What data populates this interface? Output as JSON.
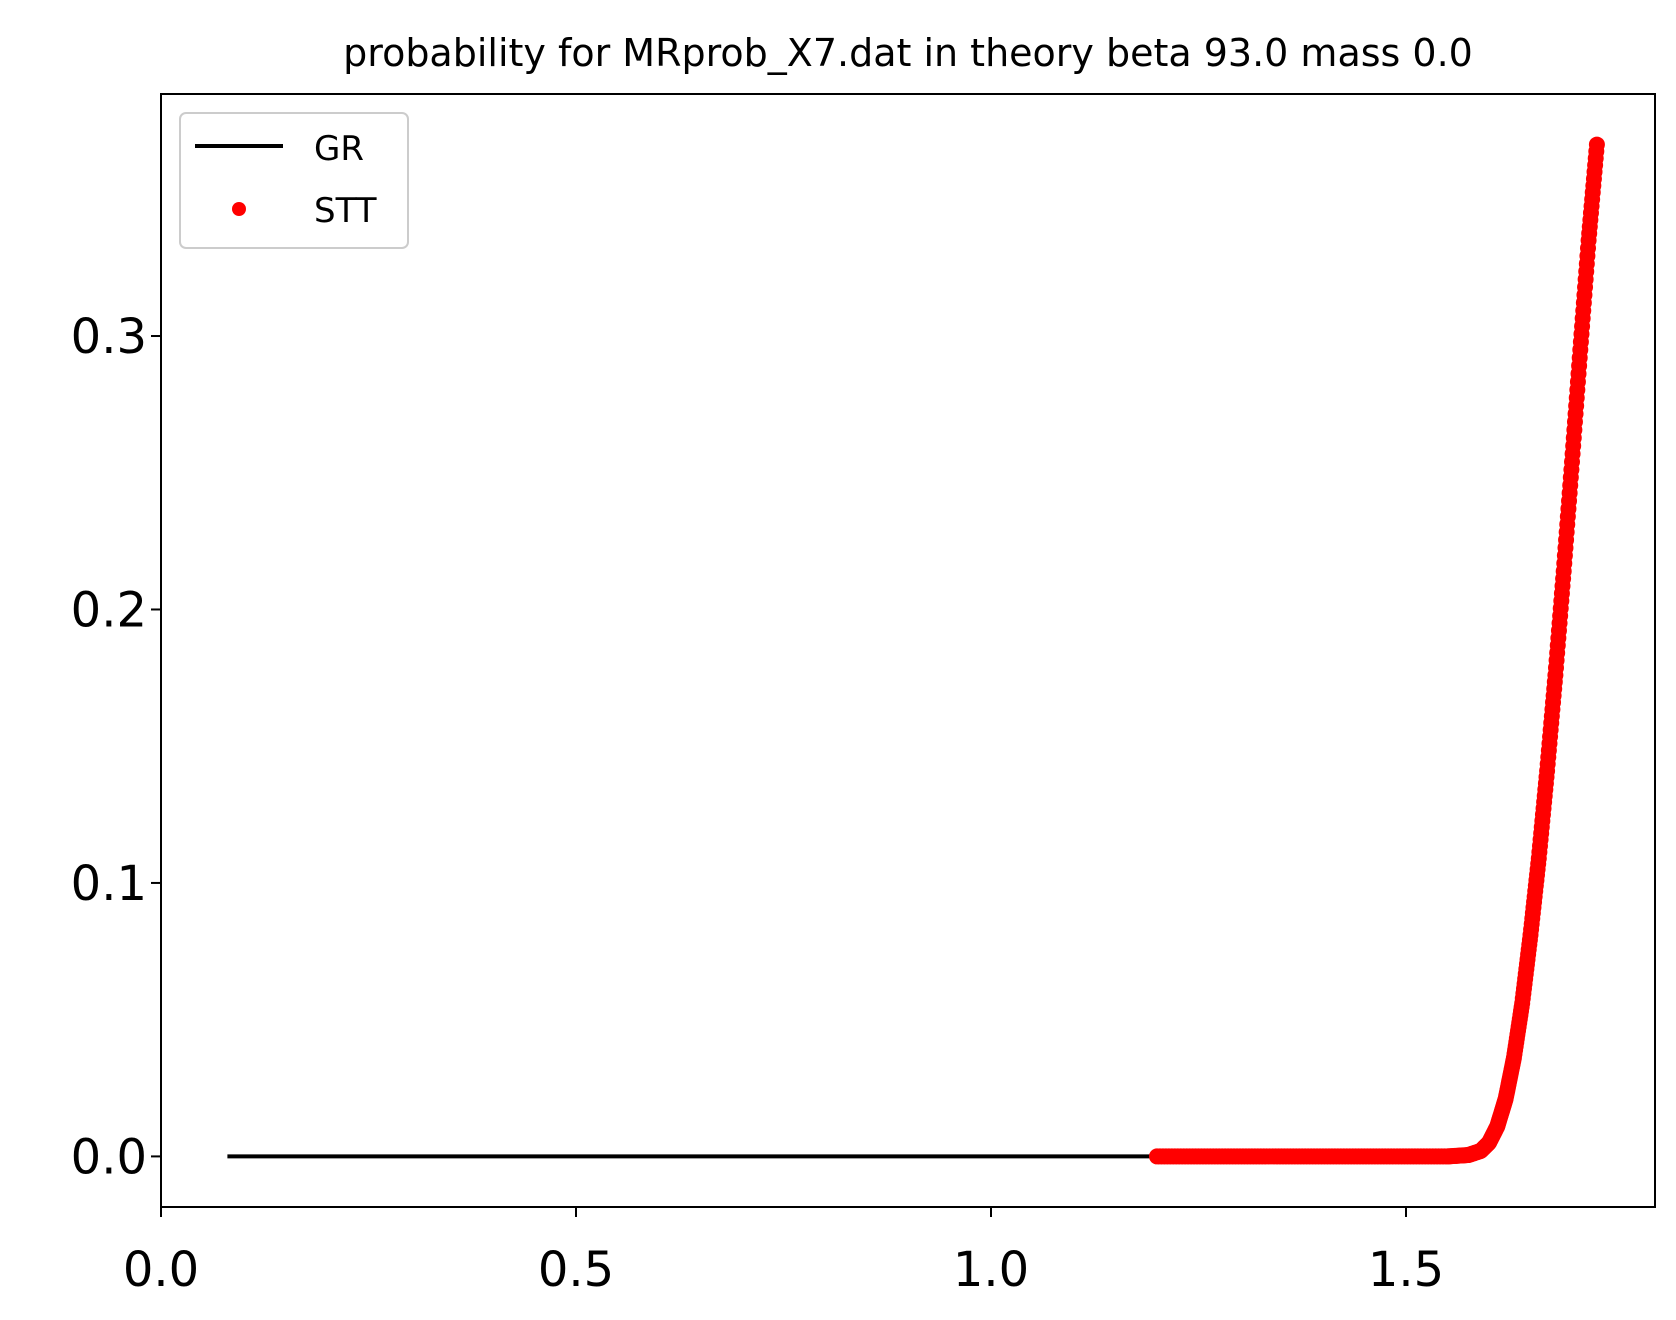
{
  "chart_data": {
    "type": "line",
    "title": "probability for MRprob_X7.dat in theory beta 93.0 mass 0.0",
    "xlabel": "",
    "ylabel": "",
    "xlim": [
      0.0,
      1.8
    ],
    "ylim": [
      -0.0185,
      0.3885
    ],
    "x_ticks": [
      0.0,
      0.5,
      1.0,
      1.5
    ],
    "x_tick_labels": [
      "0.0",
      "0.5",
      "1.0",
      "1.5"
    ],
    "y_ticks": [
      0.0,
      0.1,
      0.2,
      0.3
    ],
    "y_tick_labels": [
      "0.0",
      "0.1",
      "0.2",
      "0.3"
    ],
    "grid": false,
    "legend_position": "top-left",
    "series": [
      {
        "name": "GR",
        "style": "line",
        "color": "#000000",
        "x": [
          0.08,
          0.2,
          0.4,
          0.6,
          0.8,
          1.0,
          1.2
        ],
        "y": [
          0.0,
          0.0,
          0.0,
          0.0,
          0.0,
          0.0,
          0.0
        ]
      },
      {
        "name": "STT",
        "style": "points",
        "color": "#ff0000",
        "x": [
          1.2,
          1.25,
          1.3,
          1.35,
          1.4,
          1.45,
          1.5,
          1.55,
          1.575,
          1.59,
          1.6,
          1.61,
          1.62,
          1.63,
          1.64,
          1.65,
          1.66,
          1.67,
          1.68,
          1.69,
          1.7,
          1.71,
          1.72,
          1.73
        ],
        "y": [
          0.0,
          0.0,
          0.0,
          0.0,
          0.0,
          0.0,
          0.0,
          0.0,
          0.0005,
          0.002,
          0.005,
          0.011,
          0.021,
          0.036,
          0.056,
          0.081,
          0.109,
          0.141,
          0.176,
          0.214,
          0.254,
          0.295,
          0.335,
          0.37
        ]
      }
    ]
  }
}
